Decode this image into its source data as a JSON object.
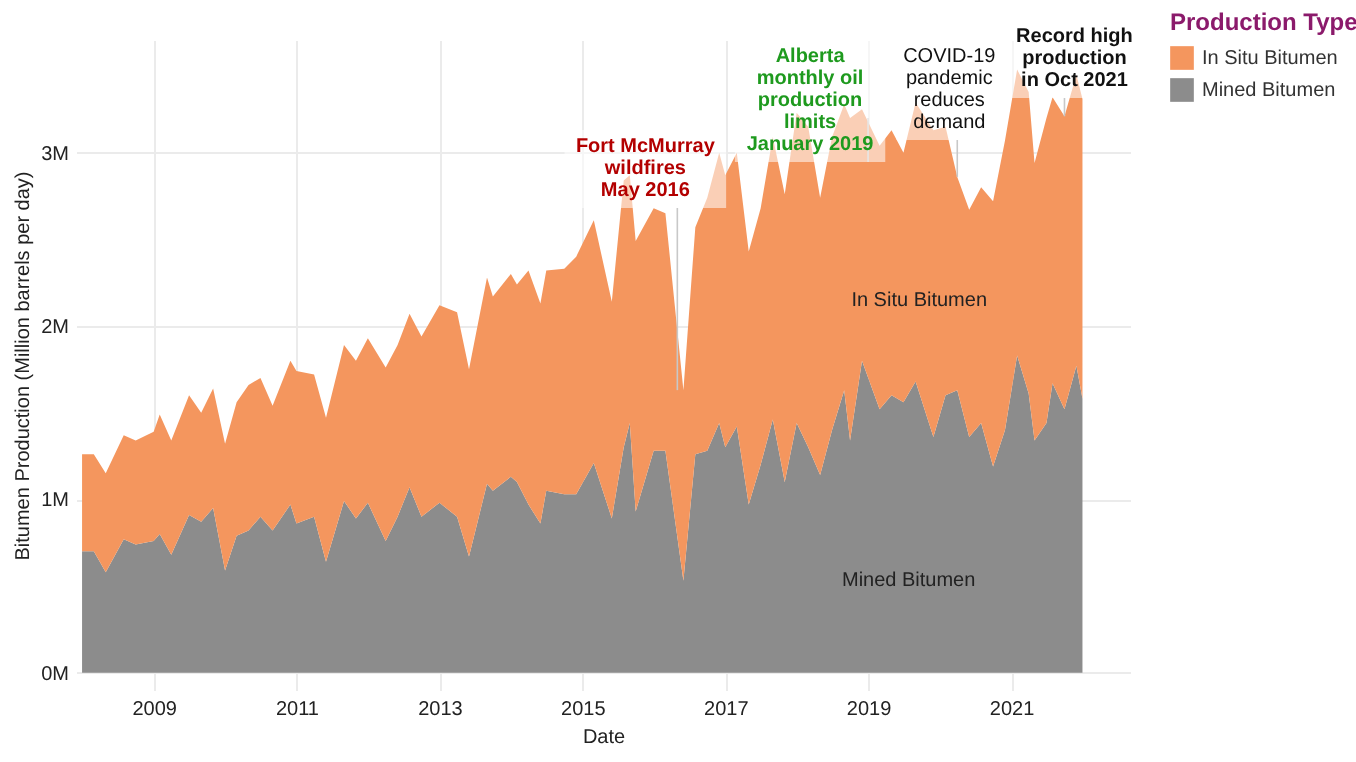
{
  "chart_data": {
    "type": "area",
    "stacked": true,
    "xlabel": "Date",
    "ylabel": "Bitumen Production (Million barrels per day)",
    "legend_title": "Production Type",
    "legend": "top right",
    "grid": true,
    "x": [
      "2008-01",
      "2008-03",
      "2008-05",
      "2008-08",
      "2008-10",
      "2009-01",
      "2009-02",
      "2009-04",
      "2009-07",
      "2009-09",
      "2009-11",
      "2010-01",
      "2010-03",
      "2010-05",
      "2010-07",
      "2010-09",
      "2010-12",
      "2011-01",
      "2011-04",
      "2011-06",
      "2011-09",
      "2011-11",
      "2012-01",
      "2012-04",
      "2012-06",
      "2012-08",
      "2012-10",
      "2013-01",
      "2013-04",
      "2013-06",
      "2013-09",
      "2013-10",
      "2014-01",
      "2014-02",
      "2014-04",
      "2014-06",
      "2014-07",
      "2014-10",
      "2014-12",
      "2015-03",
      "2015-06",
      "2015-08",
      "2015-09",
      "2015-10",
      "2016-01",
      "2016-03",
      "2016-06",
      "2016-08",
      "2016-10",
      "2016-12",
      "2017-01",
      "2017-03",
      "2017-05",
      "2017-07",
      "2017-09",
      "2017-11",
      "2018-01",
      "2018-03",
      "2018-05",
      "2018-07",
      "2018-09",
      "2018-10",
      "2018-12",
      "2019-03",
      "2019-05",
      "2019-07",
      "2019-09",
      "2019-12",
      "2020-02",
      "2020-04",
      "2020-06",
      "2020-08",
      "2020-10",
      "2020-12",
      "2021-02",
      "2021-04",
      "2021-05",
      "2021-07",
      "2021-08",
      "2021-10",
      "2021-12",
      "2022-01"
    ],
    "series": [
      {
        "name": "Mined Bitumen",
        "color": "#8c8c8c",
        "values": [
          0.7,
          0.7,
          0.58,
          0.77,
          0.74,
          0.76,
          0.8,
          0.68,
          0.91,
          0.87,
          0.95,
          0.59,
          0.79,
          0.82,
          0.9,
          0.82,
          0.97,
          0.86,
          0.9,
          0.64,
          0.99,
          0.89,
          0.98,
          0.76,
          0.9,
          1.07,
          0.9,
          0.98,
          0.9,
          0.67,
          1.09,
          1.05,
          1.13,
          1.1,
          0.97,
          0.86,
          1.05,
          1.03,
          1.03,
          1.21,
          0.89,
          1.3,
          1.44,
          0.93,
          1.28,
          1.28,
          0.53,
          1.26,
          1.28,
          1.44,
          1.3,
          1.42,
          0.97,
          1.2,
          1.46,
          1.1,
          1.44,
          1.3,
          1.14,
          1.4,
          1.63,
          1.34,
          1.8,
          1.52,
          1.6,
          1.56,
          1.68,
          1.36,
          1.6,
          1.63,
          1.36,
          1.44,
          1.19,
          1.4,
          1.83,
          1.61,
          1.34,
          1.44,
          1.67,
          1.52,
          1.77,
          1.58
        ]
      },
      {
        "name": "In Situ Bitumen",
        "color": "#f4965e",
        "values": [
          0.56,
          0.56,
          0.57,
          0.6,
          0.6,
          0.63,
          0.69,
          0.66,
          0.69,
          0.63,
          0.69,
          0.73,
          0.77,
          0.84,
          0.8,
          0.72,
          0.83,
          0.88,
          0.82,
          0.83,
          0.9,
          0.91,
          0.95,
          1.0,
          0.99,
          1.0,
          1.04,
          1.14,
          1.18,
          1.08,
          1.19,
          1.12,
          1.17,
          1.14,
          1.35,
          1.27,
          1.27,
          1.3,
          1.37,
          1.4,
          1.25,
          1.54,
          1.43,
          1.56,
          1.4,
          1.37,
          1.1,
          1.31,
          1.46,
          1.56,
          1.57,
          1.58,
          1.46,
          1.48,
          1.63,
          1.66,
          1.79,
          1.85,
          1.6,
          1.69,
          1.65,
          1.86,
          1.45,
          1.52,
          1.53,
          1.44,
          1.61,
          1.77,
          1.55,
          1.23,
          1.31,
          1.36,
          1.53,
          1.67,
          1.65,
          1.74,
          1.6,
          1.76,
          1.65,
          1.69,
          1.68,
          1.73
        ]
      }
    ],
    "xlim": [
      "2007-12",
      "2022-09"
    ],
    "xticks": [
      "2009",
      "2011",
      "2013",
      "2015",
      "2017",
      "2019",
      "2021"
    ],
    "ylim": [
      -0.1,
      3.65
    ],
    "yticks": [
      {
        "value": 0,
        "label": "0M"
      },
      {
        "value": 1,
        "label": "1M"
      },
      {
        "value": 2,
        "label": "2M"
      },
      {
        "value": 3,
        "label": "3M"
      }
    ],
    "annotations": [
      {
        "text": "Fort McMurray\nwildfires\nMay 2016",
        "x": "2016-05",
        "y": 1.63
      },
      {
        "text": "Alberta\nmonthly oil\nproduction\nlimits\nJanuary 2019",
        "x": "2019-01",
        "y": 3.2
      },
      {
        "text": "COVID-19\npandemic\nreduces\ndemand",
        "x": "2020-04",
        "y": 2.86
      },
      {
        "text": "Record high\nproduction\nin Oct 2021",
        "x": "2021-10",
        "y": 3.21
      }
    ]
  }
}
